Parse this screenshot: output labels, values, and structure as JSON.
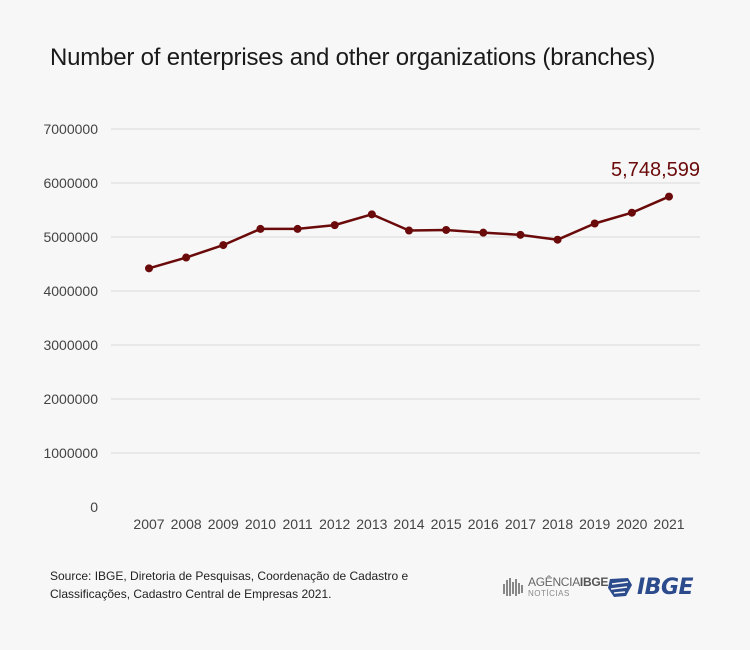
{
  "chart_data": {
    "type": "line",
    "title": "Number of enterprises and other organizations (branches)",
    "xlabel": "",
    "ylabel": "",
    "categories": [
      "2007",
      "2008",
      "2009",
      "2010",
      "2011",
      "2012",
      "2013",
      "2014",
      "2015",
      "2016",
      "2017",
      "2018",
      "2019",
      "2020",
      "2021"
    ],
    "series": [
      {
        "values": [
          4420000,
          4620000,
          4850000,
          5150000,
          5150000,
          5220000,
          5420000,
          5120000,
          5130000,
          5080000,
          5040000,
          4950000,
          5250000,
          5450000,
          5748599
        ]
      }
    ],
    "yticks": [
      0,
      1000000,
      2000000,
      3000000,
      4000000,
      5000000,
      6000000,
      7000000
    ],
    "ylim": [
      0,
      7000000
    ],
    "grid": true,
    "line_color": "#6b0a0a",
    "grid_color": "#d9d9d9",
    "annotation": {
      "category": "2021",
      "text": "5,748,599",
      "color": "#6b0a0a"
    }
  },
  "source_text": "Source: IBGE, Diretoria de Pesquisas, Coordenação de Cadastro e Classificações, Cadastro Central de Empresas 2021.",
  "logos": {
    "agencia_name": "AGÊNCIA",
    "agencia_brand": "IBGE",
    "agencia_sub": "NOTÍCIAS",
    "ibge": "IBGE"
  }
}
